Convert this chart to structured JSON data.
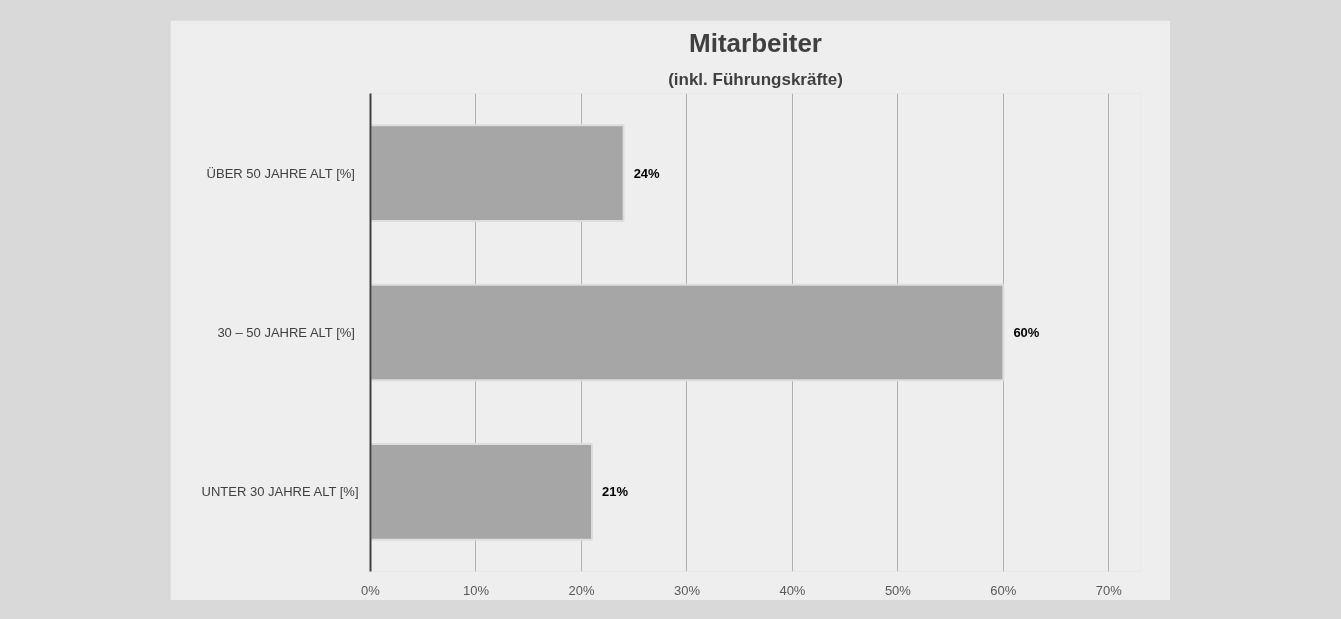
{
  "chart_data": {
    "type": "bar",
    "orientation": "horizontal",
    "title": "Mitarbeiter",
    "subtitle": "(inkl. Führungskräfte)",
    "categories": [
      "ÜBER 50 JAHRE ALT  [%]",
      "30 – 50 JAHRE ALT  [%]",
      "UNTER 30 JAHRE ALT [%]"
    ],
    "values": [
      24,
      60,
      21
    ],
    "value_labels": [
      "24%",
      "60%",
      "21%"
    ],
    "color": "#a6a6a6",
    "xlim": [
      0,
      73
    ],
    "xticks": [
      {
        "value": 0,
        "label": "0%"
      },
      {
        "value": 10,
        "label": "10%"
      },
      {
        "value": 20,
        "label": "20%"
      },
      {
        "value": 30,
        "label": "30%"
      },
      {
        "value": 40,
        "label": "40%"
      },
      {
        "value": 50,
        "label": "50%"
      },
      {
        "value": 60,
        "label": "60%"
      },
      {
        "value": 70,
        "label": "70%"
      }
    ],
    "grid": "x"
  }
}
